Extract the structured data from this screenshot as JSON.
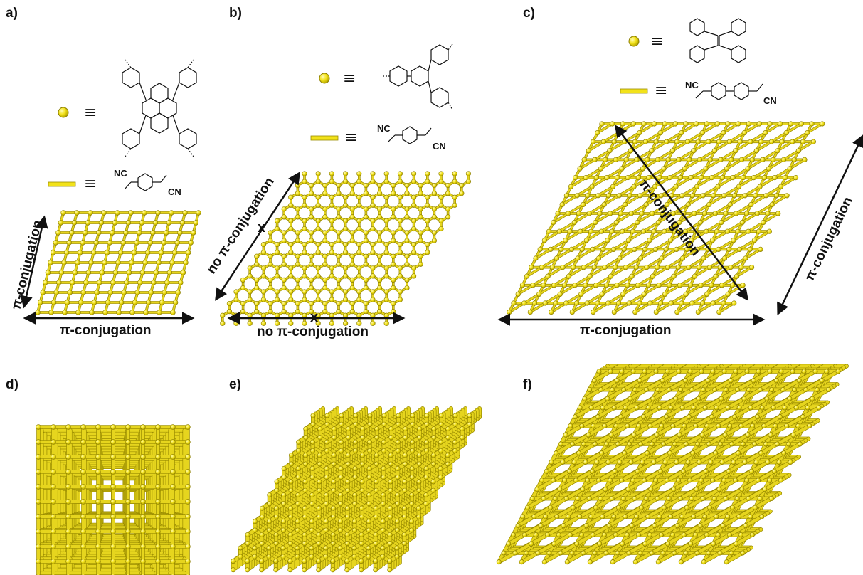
{
  "colors": {
    "node": "#f2e21a",
    "node_stroke": "#8a7d00",
    "bond": "#e6d51e",
    "bond_stroke": "#9a8c00",
    "ink": "#111111"
  },
  "panels": {
    "a": {
      "label": "a)",
      "x_axis_label": "π-conjugation",
      "y_axis_label": "π-conjugation",
      "nc_label": "NC",
      "cn_label": "CN"
    },
    "b": {
      "label": "b)",
      "x_axis_label": "no π-conjugation",
      "diag_axis_label": "no π-conjugation",
      "x_mark": "x",
      "nc_label": "NC",
      "cn_label": "CN"
    },
    "c": {
      "label": "c)",
      "x_axis_label": "π-conjugation",
      "diag_axis_label": "π-conjugation",
      "side_axis_label": "π-conjugation",
      "nc_label": "NC",
      "cn_label": "CN"
    },
    "d": {
      "label": "d)"
    },
    "e": {
      "label": "e)"
    },
    "f": {
      "label": "f)"
    }
  },
  "legend": {
    "equiv_symbol": "≡"
  }
}
